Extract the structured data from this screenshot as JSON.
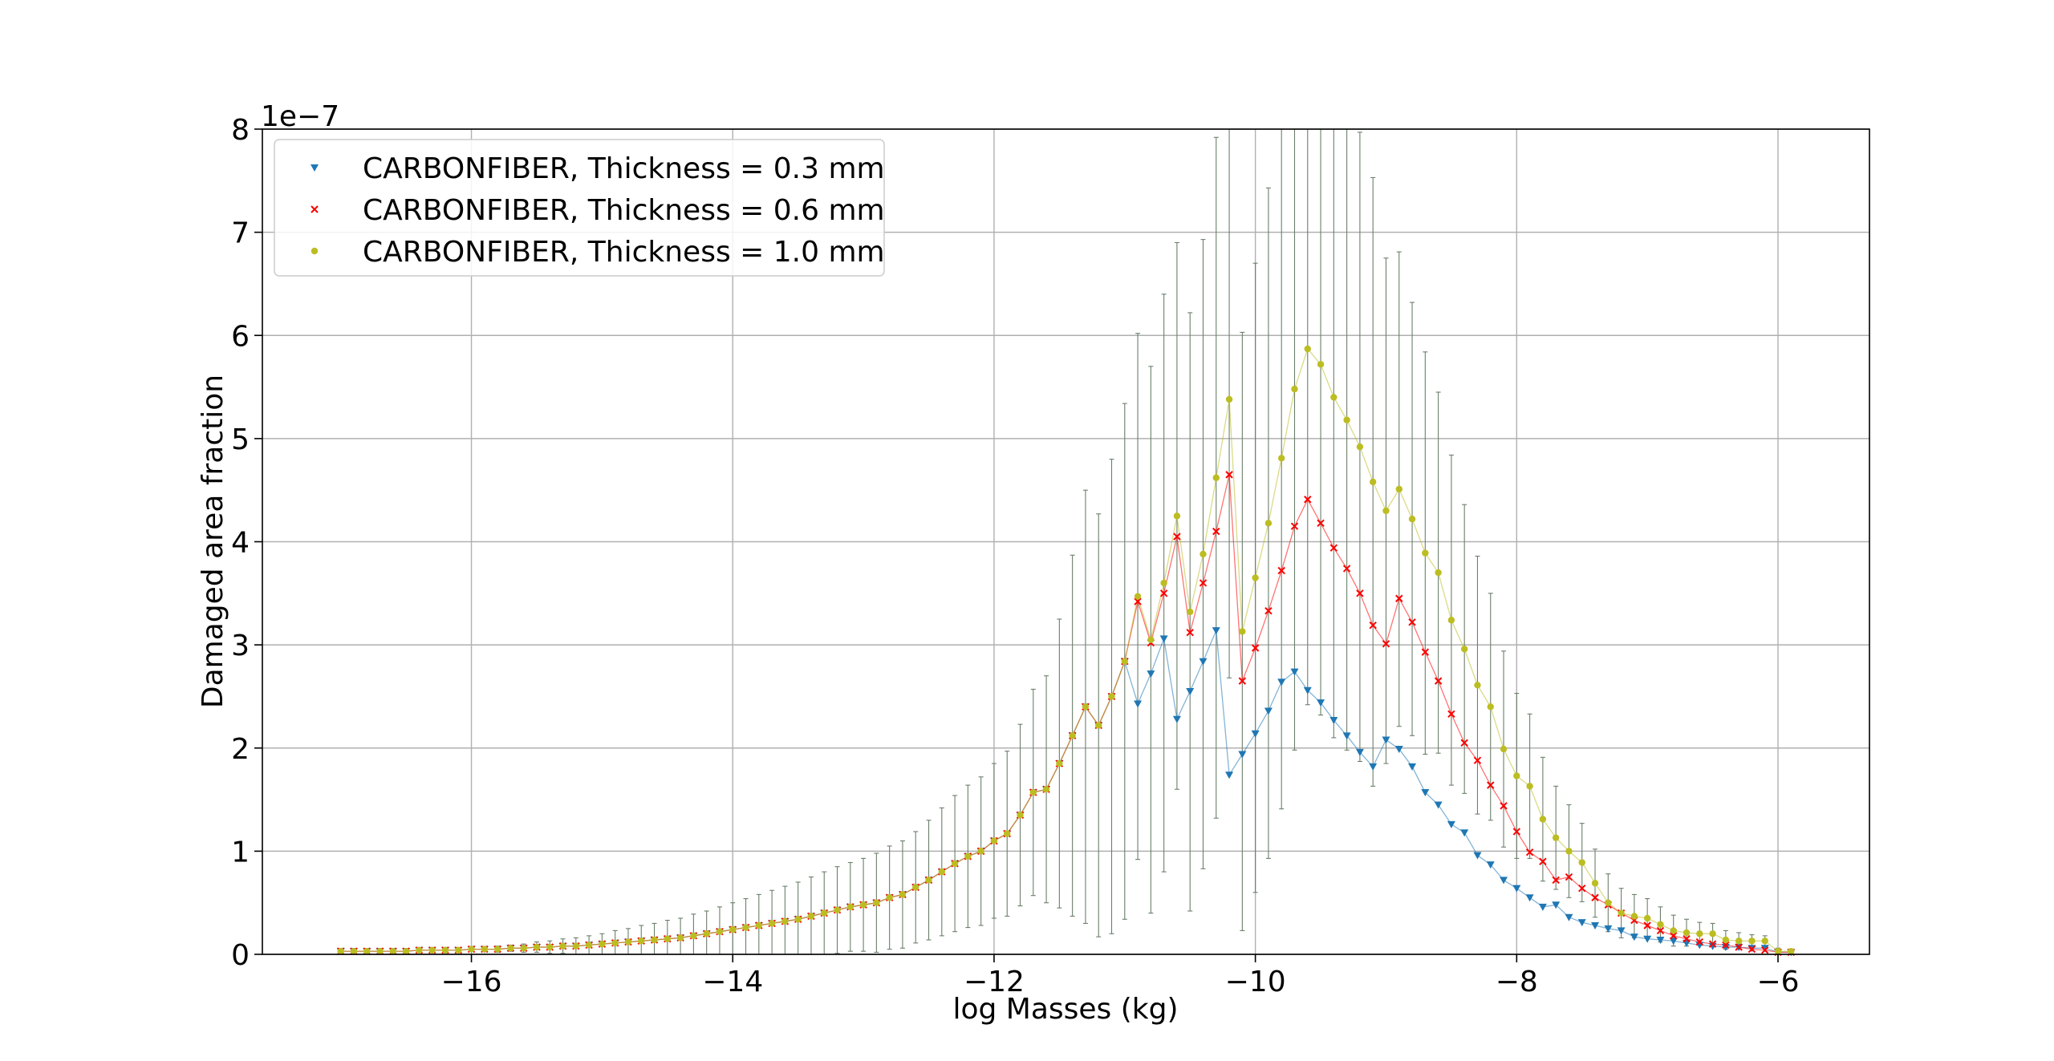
{
  "chart_data": {
    "type": "line",
    "title": "",
    "xlabel": "log Masses (kg)",
    "ylabel": "Damaged area fraction",
    "y_offset_label": "1e−7",
    "xlim": [
      -17.6,
      -5.3
    ],
    "ylim": [
      0,
      8
    ],
    "x_ticks": [
      -16,
      -14,
      -12,
      -10,
      -8,
      -6
    ],
    "x_tick_labels": [
      "−16",
      "−14",
      "−12",
      "−10",
      "−8",
      "−6"
    ],
    "y_ticks": [
      0,
      1,
      2,
      3,
      4,
      5,
      6,
      7,
      8
    ],
    "y_tick_labels": [
      "0",
      "1",
      "2",
      "3",
      "4",
      "5",
      "6",
      "7",
      "8"
    ],
    "grid": true,
    "legend_position": "top-left",
    "x": [
      -17.0,
      -16.9,
      -16.8,
      -16.7,
      -16.6,
      -16.5,
      -16.4,
      -16.3,
      -16.2,
      -16.1,
      -16.0,
      -15.9,
      -15.8,
      -15.7,
      -15.6,
      -15.5,
      -15.4,
      -15.3,
      -15.2,
      -15.1,
      -15.0,
      -14.9,
      -14.8,
      -14.7,
      -14.6,
      -14.5,
      -14.4,
      -14.3,
      -14.2,
      -14.1,
      -14.0,
      -13.9,
      -13.8,
      -13.7,
      -13.6,
      -13.5,
      -13.4,
      -13.3,
      -13.2,
      -13.1,
      -13.0,
      -12.9,
      -12.8,
      -12.7,
      -12.6,
      -12.5,
      -12.4,
      -12.3,
      -12.2,
      -12.1,
      -12.0,
      -11.9,
      -11.8,
      -11.7,
      -11.6,
      -11.5,
      -11.4,
      -11.3,
      -11.2,
      -11.1,
      -11.0,
      -10.9,
      -10.8,
      -10.7,
      -10.6,
      -10.5,
      -10.4,
      -10.3,
      -10.2,
      -10.1,
      -10.0,
      -9.9,
      -9.8,
      -9.7,
      -9.6,
      -9.5,
      -9.4,
      -9.3,
      -9.2,
      -9.1,
      -9.0,
      -8.9,
      -8.8,
      -8.7,
      -8.6,
      -8.5,
      -8.4,
      -8.3,
      -8.2,
      -8.1,
      -8.0,
      -7.9,
      -7.8,
      -7.7,
      -7.6,
      -7.5,
      -7.4,
      -7.3,
      -7.2,
      -7.1,
      -7.0,
      -6.9,
      -6.8,
      -6.7,
      -6.6,
      -6.5,
      -6.4,
      -6.3,
      -6.2,
      -6.1,
      -6.0,
      -5.9
    ],
    "shared_low": [
      0.03,
      0.03,
      0.03,
      0.03,
      0.03,
      0.03,
      0.04,
      0.04,
      0.04,
      0.04,
      0.05,
      0.05,
      0.05,
      0.06,
      0.06,
      0.07,
      0.07,
      0.08,
      0.08,
      0.09,
      0.1,
      0.11,
      0.12,
      0.13,
      0.14,
      0.15,
      0.16,
      0.18,
      0.2,
      0.22,
      0.24,
      0.26,
      0.28,
      0.3,
      0.32,
      0.34,
      0.37,
      0.4,
      0.43,
      0.46,
      0.48,
      0.5,
      0.55,
      0.58,
      0.65,
      0.72,
      0.8,
      0.88,
      0.95,
      1.0,
      1.1,
      1.17,
      1.35,
      1.57,
      1.6,
      1.85,
      2.12,
      2.4,
      2.22,
      2.5,
      2.84
    ],
    "series": [
      {
        "name": "CARBONFIBER, Thickness = 0.3 mm",
        "color": "#1f77b4",
        "marker": "triangle-down",
        "tail": [
          2.43,
          2.72,
          3.06,
          2.28,
          2.55,
          2.84,
          3.14,
          1.74,
          1.94,
          2.14,
          2.36,
          2.64,
          2.74,
          2.56,
          2.44,
          2.27,
          2.12,
          1.96,
          1.82,
          2.08,
          1.99,
          1.82,
          1.57,
          1.45,
          1.26,
          1.18,
          0.96,
          0.87,
          0.72,
          0.64,
          0.55,
          0.46,
          0.48,
          0.36,
          0.31,
          0.28,
          0.25,
          0.23,
          0.17,
          0.15,
          0.14,
          0.13,
          0.11,
          0.09,
          0.08,
          0.07,
          0.07,
          0.06,
          0.06,
          0.02,
          0.02
        ]
      },
      {
        "name": "CARBONFIBER, Thickness = 0.6 mm",
        "color": "#ff0000",
        "marker": "x",
        "tail": [
          3.42,
          3.02,
          3.5,
          4.05,
          3.12,
          3.6,
          4.1,
          4.65,
          2.65,
          2.97,
          3.33,
          3.72,
          4.15,
          4.41,
          4.18,
          3.94,
          3.74,
          3.5,
          3.19,
          3.01,
          3.45,
          3.22,
          2.93,
          2.65,
          2.33,
          2.05,
          1.88,
          1.64,
          1.44,
          1.19,
          0.99,
          0.9,
          0.72,
          0.75,
          0.64,
          0.55,
          0.48,
          0.4,
          0.33,
          0.28,
          0.23,
          0.18,
          0.15,
          0.12,
          0.1,
          0.09,
          0.07,
          0.05,
          0.04,
          0.02,
          0.02
        ]
      },
      {
        "name": "CARBONFIBER, Thickness = 1.0 mm",
        "color": "#bcbd22",
        "marker": "circle",
        "tail": [
          3.47,
          3.05,
          3.6,
          4.25,
          3.32,
          3.88,
          4.62,
          5.38,
          3.13,
          3.65,
          4.18,
          4.81,
          5.48,
          5.87,
          5.72,
          5.4,
          5.18,
          4.92,
          4.58,
          4.3,
          4.51,
          4.22,
          3.89,
          3.7,
          3.24,
          2.96,
          2.61,
          2.4,
          1.99,
          1.73,
          1.63,
          1.31,
          1.13,
          1.0,
          0.89,
          0.69,
          0.5,
          0.4,
          0.37,
          0.35,
          0.29,
          0.23,
          0.21,
          0.2,
          0.2,
          0.14,
          0.13,
          0.13,
          0.13,
          0.03,
          0.03
        ]
      }
    ],
    "error_bar_half_width": [
      0.01,
      0.01,
      0.01,
      0.01,
      0.01,
      0.01,
      0.01,
      0.01,
      0.01,
      0.02,
      0.02,
      0.02,
      0.03,
      0.03,
      0.04,
      0.05,
      0.06,
      0.07,
      0.08,
      0.09,
      0.1,
      0.12,
      0.13,
      0.15,
      0.16,
      0.18,
      0.19,
      0.21,
      0.22,
      0.24,
      0.26,
      0.28,
      0.3,
      0.32,
      0.34,
      0.36,
      0.38,
      0.4,
      0.42,
      0.43,
      0.45,
      0.48,
      0.5,
      0.52,
      0.54,
      0.58,
      0.62,
      0.66,
      0.69,
      0.72,
      0.75,
      0.8,
      0.88,
      1.0,
      1.1,
      1.4,
      1.75,
      2.1,
      2.05,
      2.3,
      2.5,
      2.55,
      2.65,
      2.8,
      2.65,
      2.9,
      3.05,
      3.3,
      2.7,
      2.9,
      3.05,
      3.25,
      3.4,
      3.5,
      3.45,
      3.4,
      3.3,
      3.2,
      3.05,
      2.95,
      2.45,
      2.3,
      2.1,
      1.95,
      1.75,
      1.6,
      1.4,
      1.25,
      1.1,
      0.95,
      0.8,
      0.7,
      0.6,
      0.5,
      0.45,
      0.38,
      0.33,
      0.28,
      0.24,
      0.21,
      0.19,
      0.17,
      0.15,
      0.13,
      0.11,
      0.1,
      0.09,
      0.08,
      0.06,
      0.05,
      0.03,
      0.02
    ]
  }
}
